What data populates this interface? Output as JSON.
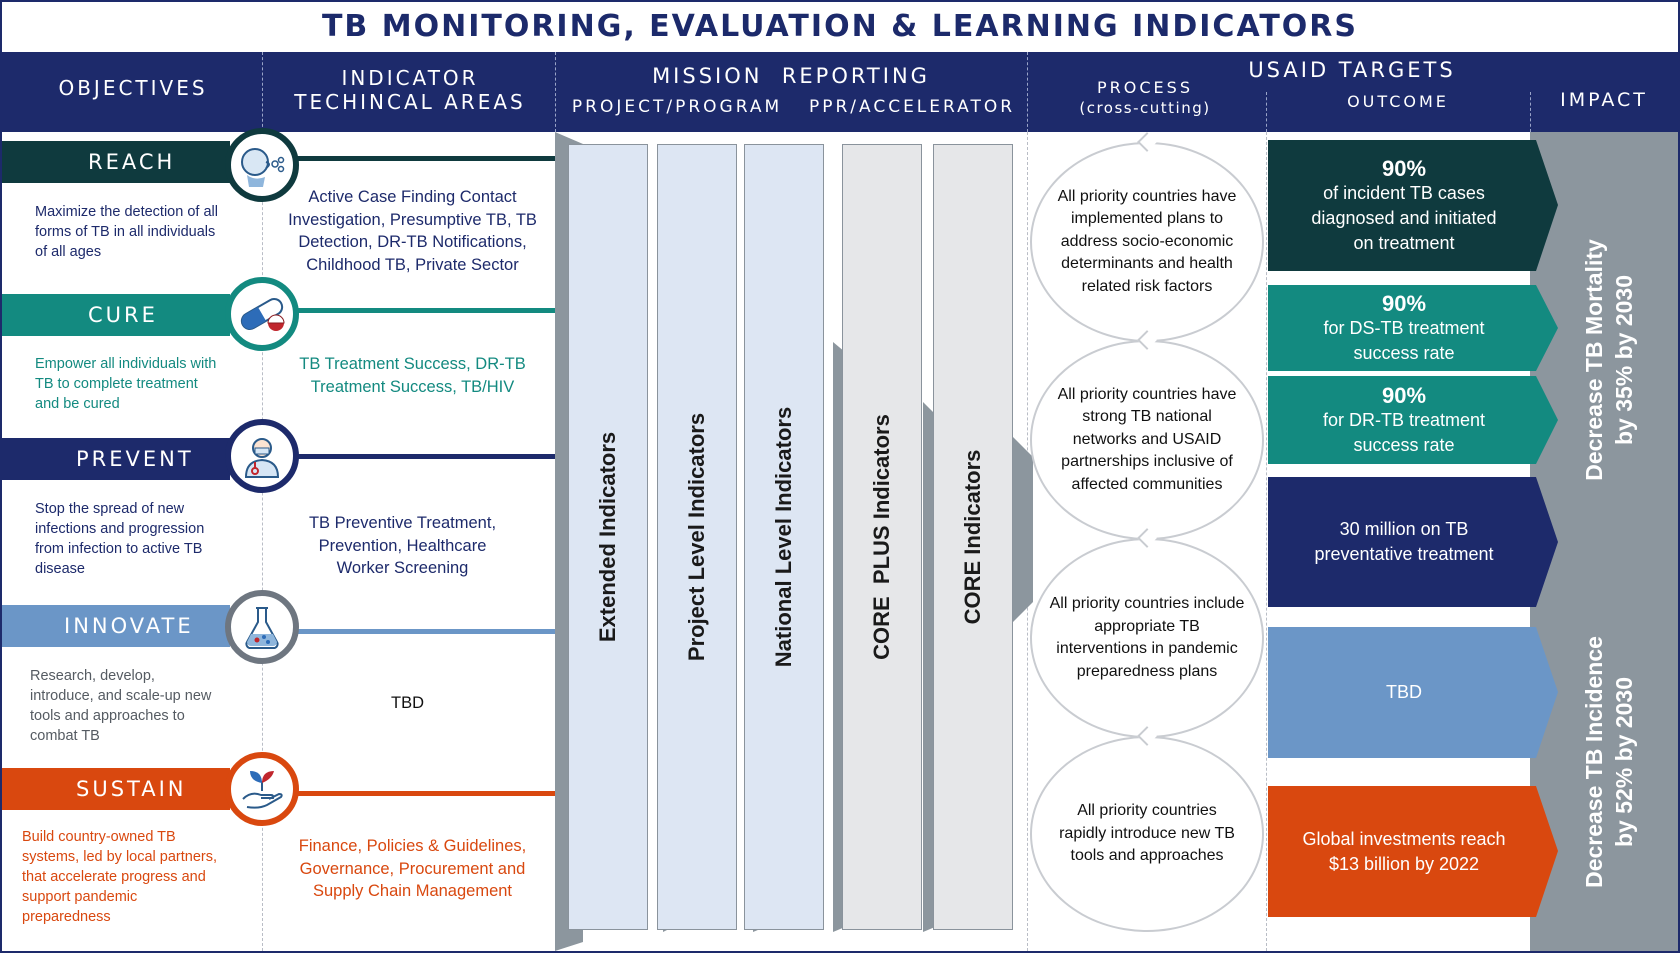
{
  "title": "TB MONITORING, EVALUATION & LEARNING INDICATORS",
  "header": {
    "objectives": "OBJECTIVES",
    "indicator_line1": "INDICATOR",
    "indicator_line2": "TECHINCAL AREAS",
    "mission_reporting": "MISSION  REPORTING",
    "project_program": "PROJECT/PROGRAM",
    "ppr_accelerator": "PPR/ACCELERATOR",
    "usaid_targets": "USAID TARGETS",
    "process": "PROCESS",
    "cross_cutting": "(cross-cutting)",
    "outcome": "OUTCOME",
    "impact": "IMPACT"
  },
  "objectives": [
    {
      "name": "REACH",
      "icon": "cough-icon",
      "color": "#0f3a3e",
      "description": "Maximize the detection of all forms of TB in all individuals of all ages",
      "areas": "Active Case Finding Contact Investigation, Presumptive TB, TB Detection, DR-TB Notifications, Childhood TB, Private Sector"
    },
    {
      "name": "CURE",
      "icon": "pill-icon",
      "color": "#138a80",
      "description": "Empower all individuals with TB to complete treatment and be cured",
      "areas": "TB Treatment Success, DR-TB Treatment Success, TB/HIV"
    },
    {
      "name": "PREVENT",
      "icon": "health-worker-icon",
      "color": "#1d2a6b",
      "description": "Stop the spread of new infections and progression from infection to active TB disease",
      "areas": "TB Preventive Treatment, Prevention, Healthcare Worker Screening"
    },
    {
      "name": "INNOVATE",
      "icon": "flask-icon",
      "color": "#6b96c7",
      "description": "Research, develop, introduce, and scale-up new tools and approaches to combat TB",
      "areas": "TBD"
    },
    {
      "name": "SUSTAIN",
      "icon": "plant-hand-icon",
      "color": "#d9480f",
      "description": "Build country-owned TB systems, led by local partners, that accelerate progress and support pandemic preparedness",
      "areas": "Finance, Policies & Guidelines, Governance, Procurement and Supply Chain Management"
    }
  ],
  "mission_indicators": [
    {
      "label": "Extended Indicators",
      "fill": "#dde6f3"
    },
    {
      "label": "Project Level Indicators",
      "fill": "#dde6f3"
    },
    {
      "label": "National Level Indicators",
      "fill": "#dde6f3"
    },
    {
      "label": "CORE  PLUS Indicators",
      "fill": "#e6e7e9"
    },
    {
      "label": "CORE Indicators",
      "fill": "#e6e7e9"
    }
  ],
  "process": [
    "All priority countries have implemented plans to address socio-economic determinants and health related risk factors",
    "All priority countries have strong TB national networks and USAID partnerships inclusive of affected communities",
    "All priority countries include appropriate TB interventions in pandemic preparedness plans",
    "All priority countries rapidly introduce new TB tools and approaches"
  ],
  "outcomes": [
    {
      "big": "90%",
      "text": "of incident TB cases diagnosed and initiated on treatment",
      "color": "#0f3a3e"
    },
    {
      "big": "90%",
      "text": "for DS-TB treatment success rate",
      "color": "#138a80"
    },
    {
      "big": "90%",
      "text": "for DR-TB treatment success rate",
      "color": "#138a80"
    },
    {
      "big": "",
      "text": "30 million on TB preventative treatment",
      "color": "#1d2a6b"
    },
    {
      "big": "",
      "text": "TBD",
      "color": "#6b96c7"
    },
    {
      "big": "",
      "text": "Global investments reach  $13 billion by 2022",
      "color": "#d9480f"
    }
  ],
  "impact": {
    "mortality_line1": "Decrease TB Mortality",
    "mortality_line2": "by 35% by 2030",
    "incidence_line1": "Decrease TB Incidence",
    "incidence_line2": "by 52% by 2030"
  }
}
